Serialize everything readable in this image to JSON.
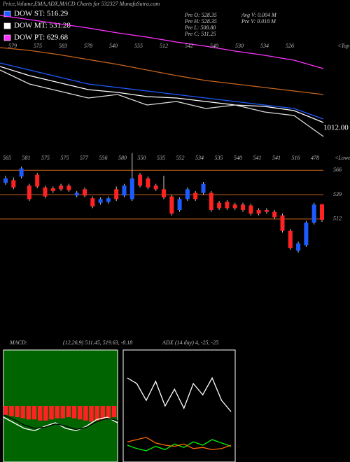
{
  "header": {
    "title": "Price,Volume,EMA,ADX,MACD Charts for 532327 MunafaSutra.com"
  },
  "legend": [
    {
      "label": "DOW ST: 516.29",
      "color": "#1e5bff"
    },
    {
      "label": "DOW MT: 531.28",
      "color": "#ffffff"
    },
    {
      "label": "DOW PT: 629.68",
      "color": "#ff33ff"
    }
  ],
  "info": [
    "Pre O: 528.35",
    "Pre H: 528.35",
    "Pre L: 508.80",
    "Pre C: 511.25",
    "Avg V: 0.004 M",
    "Pre V: 0.018 M"
  ],
  "chart_data": [
    {
      "type": "line",
      "ylim": [
        0,
        210
      ],
      "categories": [
        null,
        null,
        null,
        null,
        null,
        null,
        null,
        null,
        null,
        null,
        null,
        null
      ],
      "series": [
        {
          "color": "#ff33ff",
          "values": [
            188,
            182,
            176,
            170,
            163,
            157,
            150,
            144,
            137,
            131,
            124,
            112
          ]
        },
        {
          "color": "#c8641e",
          "values": [
            142,
            138,
            132,
            125,
            118,
            110,
            102,
            95,
            90,
            85,
            80,
            75
          ]
        },
        {
          "color": "#1e5bff",
          "values": [
            120,
            110,
            100,
            90,
            85,
            80,
            75,
            70,
            65,
            60,
            55,
            40
          ]
        },
        {
          "color": "#ffffff",
          "values": [
            115,
            102,
            92,
            82,
            78,
            72,
            70,
            65,
            60,
            58,
            52,
            35
          ]
        },
        {
          "color": "#dddddd",
          "values": [
            110,
            90,
            80,
            70,
            75,
            60,
            65,
            55,
            60,
            50,
            45,
            15
          ]
        }
      ],
      "labels": [
        "579",
        "575",
        "583",
        "578",
        "540",
        "555",
        "512",
        "542",
        "540",
        "530",
        "534",
        "526"
      ],
      "corner_label": "<Top",
      "value_label": "1012.00"
    },
    {
      "type": "candlestick",
      "ylim": [
        460,
        584
      ],
      "yticks": [
        512,
        539,
        566
      ],
      "up_color": "#1e5bff",
      "down_color": "#ff2222",
      "level_color": "#c8641e",
      "categories": [
        null,
        null,
        null,
        null,
        null,
        null,
        null,
        null,
        null,
        null,
        null,
        null,
        null,
        null,
        null,
        null,
        null,
        null,
        null,
        null,
        null,
        null,
        null,
        null,
        null,
        null,
        null,
        null,
        null,
        null,
        null,
        null,
        null,
        null,
        null,
        null,
        null,
        null,
        null,
        null,
        null
      ],
      "open": [
        552,
        555,
        559,
        549,
        561,
        547,
        546,
        549,
        549,
        538,
        545,
        535,
        530,
        531,
        545,
        538,
        534,
        561,
        557,
        549,
        545,
        537,
        522,
        534,
        541,
        541,
        541,
        530,
        531,
        528,
        528,
        527,
        522,
        522,
        520,
        516,
        499,
        477,
        483,
        508,
        528.35
      ],
      "high": [
        560,
        558,
        570,
        551,
        563,
        549,
        548,
        551,
        551,
        543,
        547,
        537,
        536,
        537,
        548,
        551,
        585,
        563,
        559,
        551,
        560,
        539,
        536,
        547,
        543,
        553,
        543,
        532,
        533,
        530,
        530,
        529,
        524,
        524,
        522,
        518,
        501,
        487,
        510,
        530,
        528.35
      ],
      "low": [
        550,
        545,
        557,
        532,
        546,
        535,
        541,
        543,
        542,
        536,
        536,
        524,
        528,
        529,
        532,
        536,
        532,
        547,
        545,
        543,
        534,
        516,
        520,
        532,
        532,
        539,
        520,
        522,
        522,
        522,
        520,
        516,
        516,
        518,
        512,
        497,
        478,
        475,
        481,
        506,
        508.8
      ],
      "close": [
        557,
        547,
        568,
        534,
        548,
        537,
        543,
        545,
        544,
        541,
        538,
        526,
        534,
        535,
        534,
        549,
        557,
        549,
        547,
        545,
        536,
        518,
        534,
        545,
        534,
        551,
        522,
        524,
        524,
        524,
        522,
        518,
        518,
        520,
        514,
        499,
        480,
        485,
        508,
        528,
        511.25
      ],
      "labels": [
        "565",
        "581",
        "575",
        "575",
        "577",
        "556",
        "580",
        "550",
        "535",
        "552",
        "534",
        "535",
        "540",
        "541",
        "541",
        "516",
        "478"
      ],
      "corner_label": "<Lower"
    },
    {
      "type": "macd",
      "title": "MACD:",
      "subtitle": "(12,26,9) 511.45, 519.63, -8.18",
      "ylim": [
        -50,
        50
      ],
      "background": "#006400",
      "bar_color": "#ff2222",
      "histogram": [
        -8,
        -9,
        -10,
        -11,
        -12,
        -12,
        -13,
        -13,
        -12,
        -11,
        -11,
        -10,
        -11,
        -12,
        -13,
        -14,
        -13,
        -12,
        -11,
        -10
      ],
      "series": [
        {
          "color": "#ffffff",
          "values": [
            -10,
            -15,
            -20,
            -22,
            -18,
            -15,
            -20,
            -22,
            -18,
            -12,
            -10,
            -15
          ]
        },
        {
          "color": "#000000",
          "values": [
            -8,
            -12,
            -17,
            -20,
            -19,
            -16,
            -18,
            -21,
            -19,
            -14,
            -11,
            -13
          ]
        }
      ]
    },
    {
      "type": "adx",
      "title": "ADX",
      "subtitle": "(14 day) 4, -25, -25",
      "ylim": [
        0,
        100
      ],
      "series": [
        {
          "color": "#ffffff",
          "values": [
            75,
            70,
            55,
            72,
            50,
            65,
            48,
            70,
            60,
            75,
            55,
            45
          ]
        },
        {
          "color": "#00ff00",
          "values": [
            15,
            12,
            10,
            14,
            11,
            16,
            13,
            18,
            15,
            20,
            17,
            14
          ]
        },
        {
          "color": "#ff6a00",
          "values": [
            18,
            20,
            22,
            17,
            15,
            14,
            16,
            12,
            13,
            11,
            12,
            15
          ]
        }
      ]
    }
  ]
}
